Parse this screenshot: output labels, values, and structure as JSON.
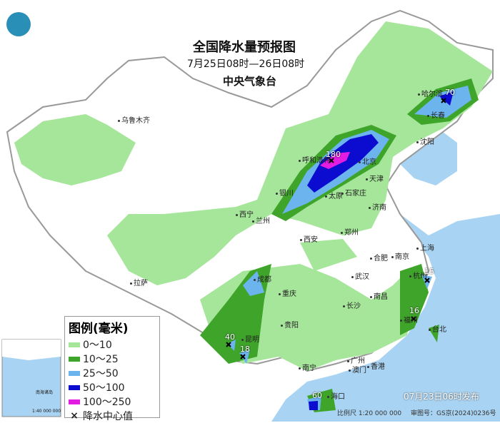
{
  "title": "全国降水量预报图",
  "period": "7月25日08时—26日08时",
  "issuer": "中央气象台",
  "legend": {
    "title": "图例(毫米)",
    "items": [
      {
        "label": "0～10",
        "color": "#a6e69a"
      },
      {
        "label": "10～25",
        "color": "#3ea52a"
      },
      {
        "label": "25～50",
        "color": "#6cb4ee"
      },
      {
        "label": "50～100",
        "color": "#0b0ccf"
      },
      {
        "label": "100～250",
        "color": "#e21ce0"
      }
    ],
    "center_label": "降水中心值",
    "center_symbol": "×"
  },
  "cities": [
    "乌鲁木齐",
    "哈尔滨",
    "长春",
    "沈阳",
    "呼和浩特",
    "北京",
    "天津",
    "银川",
    "太原",
    "石家庄",
    "西宁",
    "兰州",
    "济南",
    "郑州",
    "西安",
    "合肥",
    "南京",
    "上海",
    "拉萨",
    "成都",
    "重庆",
    "武汉",
    "杭州",
    "南昌",
    "长沙",
    "福州",
    "台北",
    "贵阳",
    "昆明",
    "南宁",
    "广州",
    "香港",
    "澳门",
    "海口"
  ],
  "centers": [
    "180",
    "70",
    "15",
    "16",
    "40",
    "18",
    "60"
  ],
  "issued": "07月23日06时发布",
  "scale": "比例尺 1:20 000 000",
  "approval": "审图号：GS京(2024)0236号",
  "inset": {
    "title": "南海诸岛",
    "scale": "1:40 000 000"
  },
  "colors": {
    "sea": "#a9d3f2",
    "land": "#ffffff",
    "border": "#9a9a9a"
  }
}
